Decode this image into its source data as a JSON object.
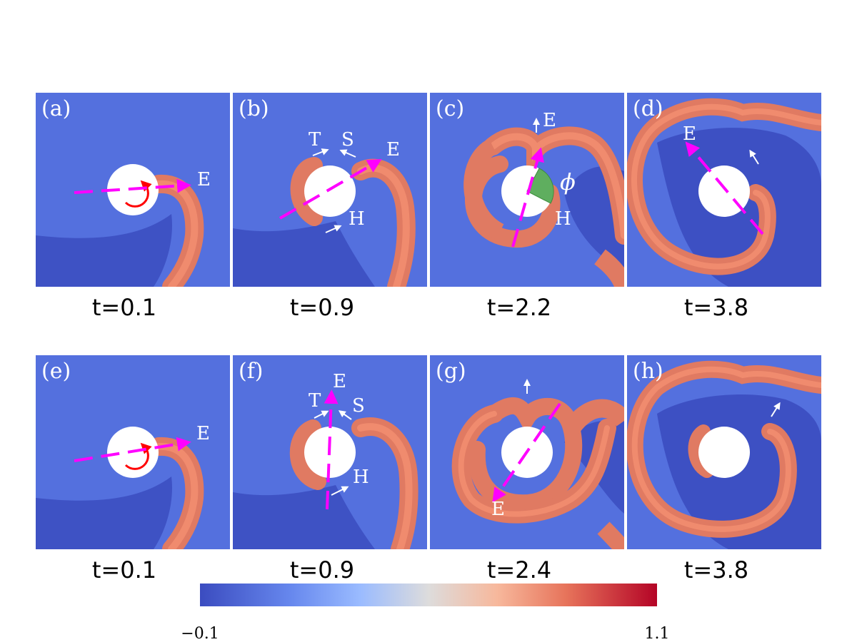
{
  "panels": [
    {
      "id": "a",
      "label": "(a)",
      "time": "t=0.1"
    },
    {
      "id": "b",
      "label": "(b)",
      "time": "t=0.9"
    },
    {
      "id": "c",
      "label": "(c)",
      "time": "t=2.2"
    },
    {
      "id": "d",
      "label": "(d)",
      "time": "t=3.8"
    },
    {
      "id": "e",
      "label": "(e)",
      "time": "t=0.1"
    },
    {
      "id": "f",
      "label": "(f)",
      "time": "t=0.9"
    },
    {
      "id": "g",
      "label": "(g)",
      "time": "t=2.4"
    },
    {
      "id": "h",
      "label": "(h)",
      "time": "t=3.8"
    }
  ],
  "annotations": {
    "E": "E",
    "T": "T",
    "S": "S",
    "H": "H",
    "phi": "ϕ"
  },
  "colorbar": {
    "min_label": "−0.1",
    "max_label": "1.1",
    "min": -0.1,
    "max": 1.1,
    "colormap": "coolwarm"
  },
  "colors": {
    "background_field": "#5470de",
    "inner_field": "#3b4cc0",
    "wave": "#e07a62",
    "wave_core": "#f08b6e",
    "marker_line": "#ff00ff",
    "rotation_arrow": "#ff0000",
    "sector": "#5fae5f",
    "obstacle": "#ffffff"
  }
}
